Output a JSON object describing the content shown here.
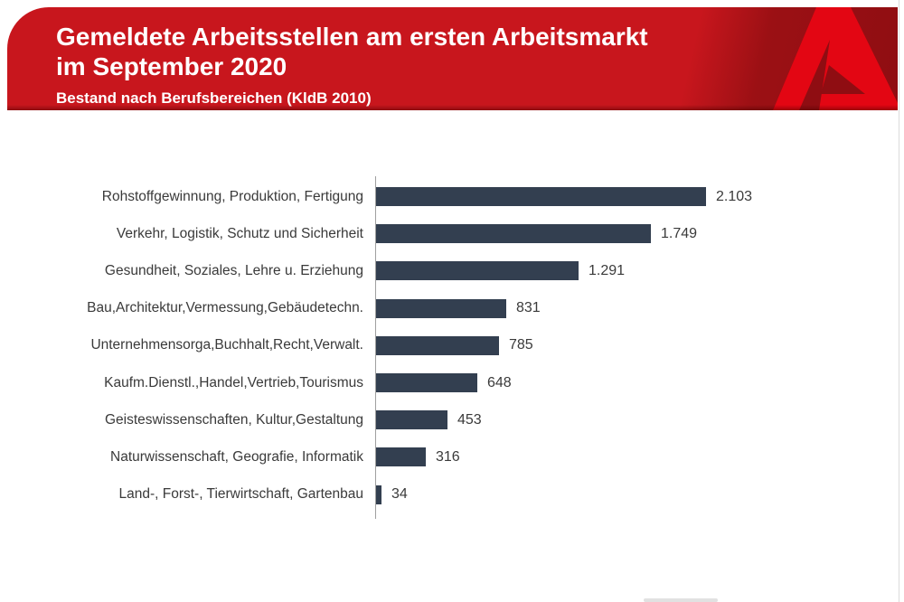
{
  "header": {
    "title_line1": "Gemeldete Arbeitsstellen am ersten Arbeitsmarkt",
    "title_line2": "im September 2020",
    "subtitle": "Bestand nach Berufsbereichen (KldB 2010)",
    "logo": "bundesagentur-fuer-arbeit-a-logo",
    "banner_color": "#c8161d",
    "banner_dark_color": "#8f0d12",
    "logo_color": "#e30613"
  },
  "chart_data": {
    "type": "bar",
    "orientation": "horizontal",
    "title": "Gemeldete Arbeitsstellen am ersten Arbeitsmarkt im September 2020",
    "subtitle": "Bestand nach Berufsbereichen (KldB 2010)",
    "categories": [
      "Rohstoffgewinnung, Produktion, Fertigung",
      "Verkehr, Logistik, Schutz und Sicherheit",
      "Gesundheit, Soziales, Lehre u. Erziehung",
      "Bau,Architektur,Vermessung,Gebäudetechn.",
      "Unternehmensorga,Buchhalt,Recht,Verwalt.",
      "Kaufm.Dienstl.,Handel,Vertrieb,Tourismus",
      "Geisteswissenschaften, Kultur,Gestaltung",
      "Naturwissenschaft, Geografie, Informatik",
      "Land-, Forst-, Tierwirtschaft, Gartenbau"
    ],
    "values": [
      2103,
      1749,
      1291,
      831,
      785,
      648,
      453,
      316,
      34
    ],
    "value_labels": [
      "2.103",
      "1.749",
      "1.291",
      "831",
      "785",
      "648",
      "453",
      "316",
      "34"
    ],
    "bar_color": "#333f50",
    "xlim": [
      0,
      2103
    ],
    "grid": false,
    "legend": false,
    "value_labels_position": "end-of-bar"
  }
}
